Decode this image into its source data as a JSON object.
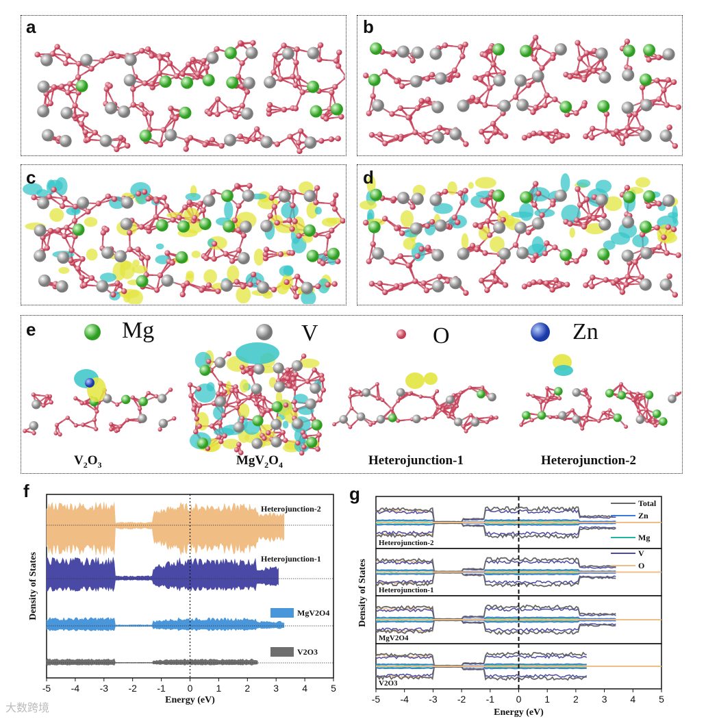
{
  "panels": {
    "a": "a",
    "b": "b",
    "c": "c",
    "d": "d",
    "e": "e",
    "f": "f",
    "g": "g"
  },
  "legend": {
    "mg": "Mg",
    "v": "V",
    "o": "O",
    "zn": "Zn"
  },
  "atom_colors": {
    "mg": "#4ec63c",
    "v": "#a8a8a8",
    "o": "#d8596b",
    "zn": "#2a4fc8",
    "iso_yellow": "#e3e640",
    "iso_cyan": "#38c6c8"
  },
  "captions": {
    "v2o3": [
      "V",
      "2",
      "O",
      "3"
    ],
    "mgv2o4": [
      "MgV",
      "2",
      "O",
      "4"
    ],
    "hj1": "Heterojunction-1",
    "hj2": "Heterojunction-2"
  },
  "chart_data": [
    {
      "type": "area",
      "xlabel": "Energy (eV)",
      "ylabel": "Density of States",
      "xlim": [
        -5,
        5
      ],
      "xticks": [
        "-5",
        "-4",
        "-3",
        "-2",
        "-1",
        "0",
        "1",
        "2",
        "3",
        "4",
        "5"
      ],
      "series": [
        {
          "name": "Heterojunction-2",
          "color": "#f0be84",
          "x_extent": [
            -5,
            3.3
          ]
        },
        {
          "name": "Heterojunction-1",
          "color": "#4a4aa6",
          "x_extent": [
            -5,
            3.1
          ]
        },
        {
          "name": "MgV2O4",
          "color": "#4a96db",
          "x_extent": [
            -5,
            3.3
          ]
        },
        {
          "name": "V2O3",
          "color": "#6f6f6f",
          "x_extent": [
            -5,
            2.4
          ]
        }
      ]
    },
    {
      "type": "line",
      "xlabel": "Energy (eV)",
      "ylabel": "Density of States",
      "xlim": [
        -5,
        5
      ],
      "xticks": [
        "-5",
        "-4",
        "-3",
        "-2",
        "-1",
        "0",
        "1",
        "2",
        "3",
        "4",
        "5"
      ],
      "legend": [
        {
          "name": "Total",
          "color": "#666666"
        },
        {
          "name": "Zn",
          "color": "#3b78d8"
        },
        {
          "name": "Mg",
          "color": "#1fb5a3"
        },
        {
          "name": "V",
          "color": "#4a4aa6"
        },
        {
          "name": "O",
          "color": "#f0be84"
        }
      ],
      "subpanels": [
        "Heterojunction-2",
        "Heterojunction-1",
        "MgV2O4",
        "V2O3"
      ]
    }
  ],
  "watermark": "大数跨境"
}
